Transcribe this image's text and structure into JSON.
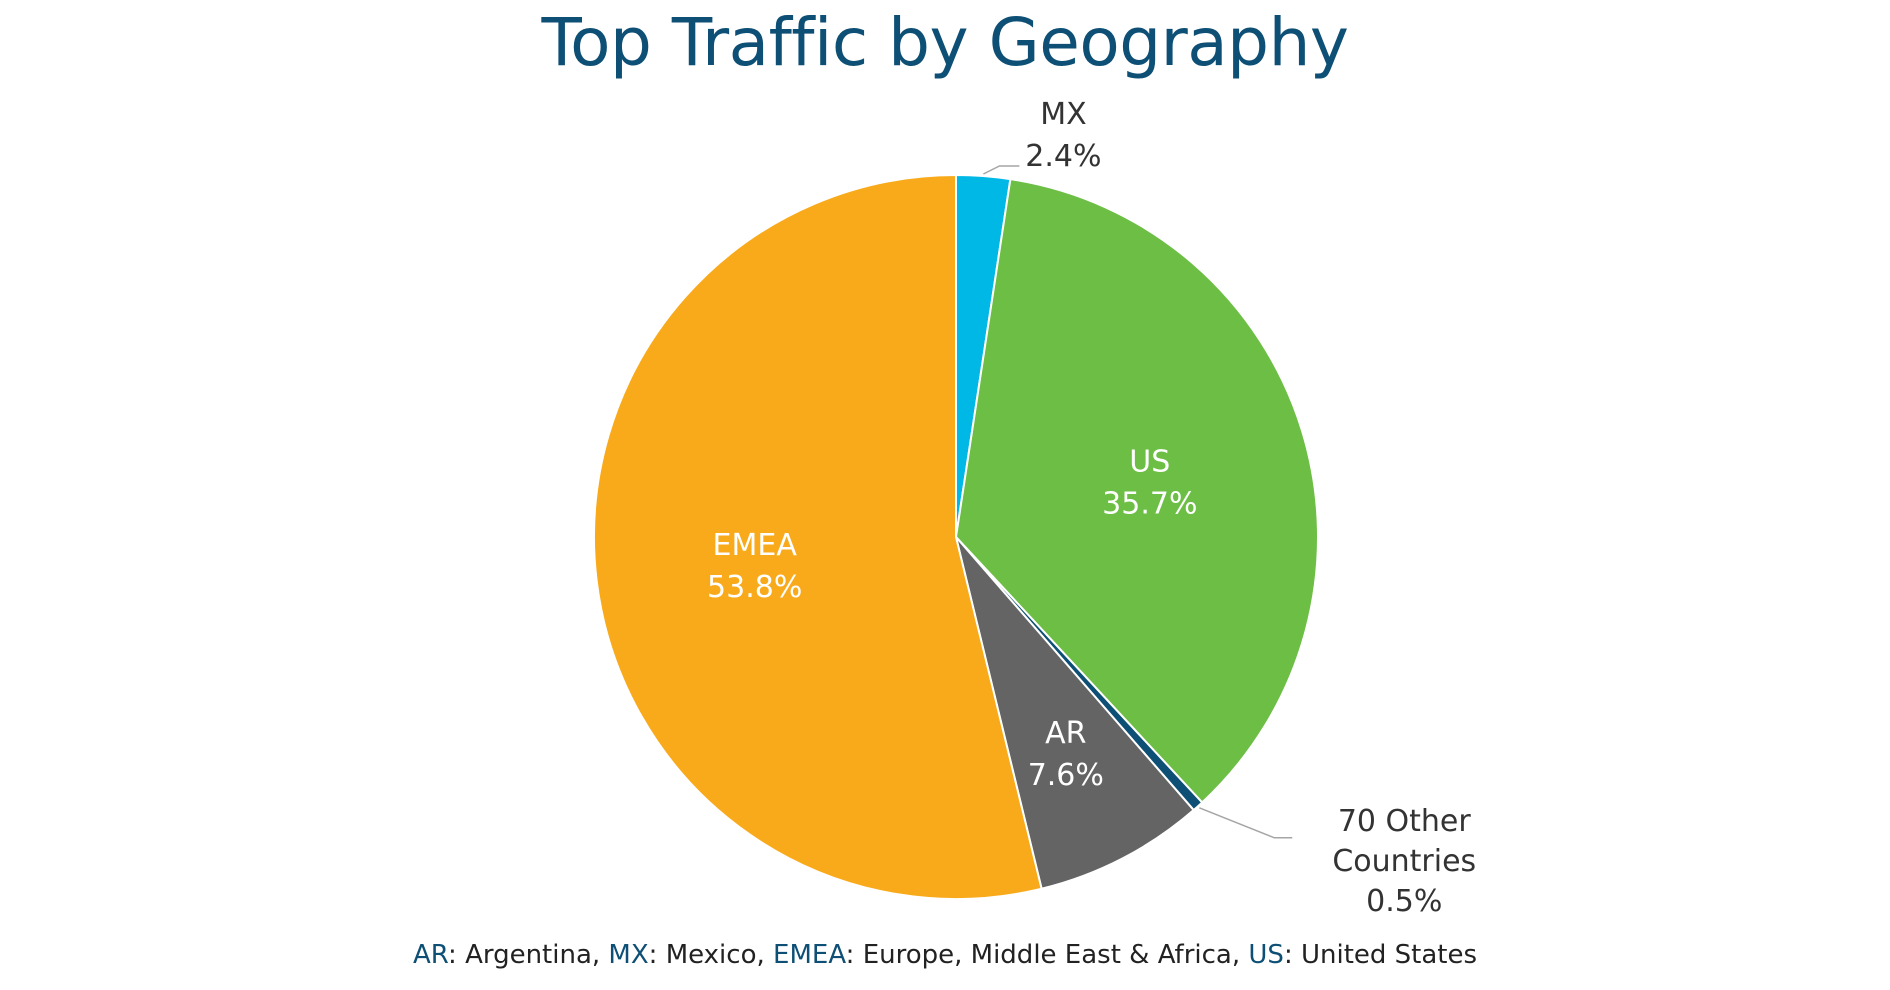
{
  "chart_data": {
    "type": "pie",
    "title": "Top Traffic by Geography",
    "slices": [
      {
        "label": "MX",
        "value": 2.4,
        "value_text": "2.4%",
        "color": "#00b8e6"
      },
      {
        "label": "US",
        "value": 35.7,
        "value_text": "35.7%",
        "color": "#6cbe45"
      },
      {
        "label": "70 Other Countries",
        "label_lines": [
          "70 Other",
          "Countries"
        ],
        "value": 0.5,
        "value_text": "0.5%",
        "color": "#0d4f75"
      },
      {
        "label": "AR",
        "value": 7.6,
        "value_text": "7.6%",
        "color": "#646464"
      },
      {
        "label": "EMEA",
        "value": 53.8,
        "value_text": "53.8%",
        "color": "#f8aa1b"
      }
    ],
    "start_angle": "12 o'clock",
    "direction": "clockwise",
    "legend": "none"
  },
  "footer": {
    "items": [
      {
        "abbr": "AR",
        "sep": ": ",
        "full": "Argentina",
        "trail": ", "
      },
      {
        "abbr": "MX",
        "sep": ": ",
        "full": "Mexico",
        "trail": ", "
      },
      {
        "abbr": "EMEA",
        "sep": ": ",
        "full": "Europe, Middle East & Africa",
        "trail": ", "
      },
      {
        "abbr": "US",
        "sep": ": ",
        "full": "United States",
        "trail": ""
      }
    ]
  },
  "colors": {
    "title": "#0d4f75",
    "inside_label": "#ffffff",
    "outside_label": "#333333",
    "leader_line": "#a6a6a6"
  }
}
